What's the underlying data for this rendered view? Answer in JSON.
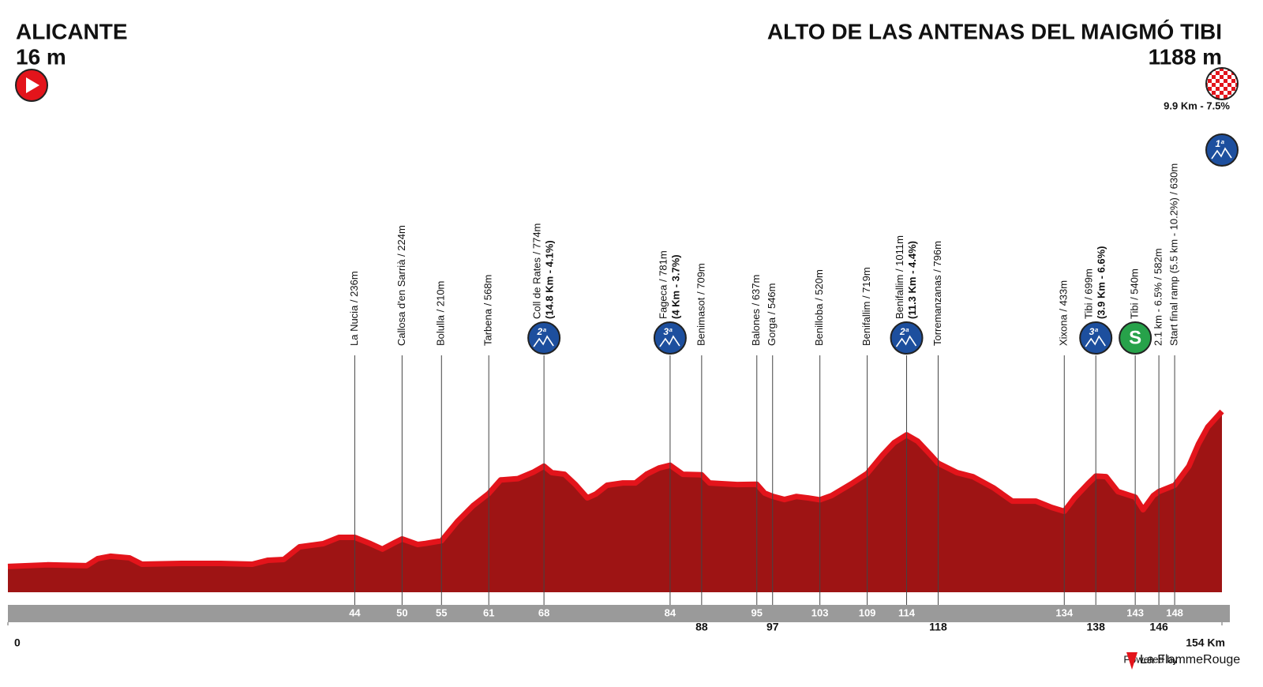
{
  "chart_data": {
    "type": "profile",
    "start": {
      "name": "ALICANTE",
      "elevation": "16 m"
    },
    "finish": {
      "name": "ALTO DE LAS ANTENAS DEL MAIGMÓ TIBI",
      "elevation": "1188 m",
      "detail": "9.9 Km - 7.5%",
      "climb": "1ª"
    },
    "xlim": [
      0,
      154
    ],
    "xticks": [
      0,
      {
        "value": 154,
        "label": "154 Km"
      }
    ],
    "ylim": [
      0,
      1200
    ],
    "fill": "#9e1414",
    "edge": "#e3141b",
    "climb_color": "#1d4f9e",
    "sprint_color": "#27a24a",
    "profile": {
      "km": [
        0,
        5,
        10,
        11.4,
        13,
        15.4,
        17,
        22,
        27,
        31,
        33,
        35,
        37,
        40,
        42,
        44,
        46,
        47.5,
        49,
        50,
        52,
        53,
        55,
        57,
        59,
        61,
        62.5,
        64.7,
        66.7,
        68,
        69,
        70.6,
        72,
        73.5,
        74.6,
        76,
        78,
        79.6,
        81,
        82.6,
        84,
        85.6,
        88,
        89,
        92.5,
        95,
        96,
        97,
        98.5,
        100,
        101.5,
        103,
        104.5,
        107,
        109,
        111,
        112.4,
        114,
        115.4,
        117,
        118,
        120.4,
        122.4,
        125,
        127.4,
        130.4,
        132.4,
        134,
        135.3,
        137,
        138,
        139.3,
        140.8,
        143,
        144,
        145.3,
        146,
        148,
        149.8,
        151,
        152.2,
        154
      ],
      "elevation": [
        16,
        28,
        22,
        75,
        93,
        81,
        33,
        39,
        39,
        33,
        63,
        69,
        164,
        188,
        236,
        236,
        188,
        147,
        194,
        224,
        182,
        190,
        210,
        355,
        475,
        568,
        670,
        680,
        730,
        774,
        725,
        713,
        635,
        534,
        564,
        630,
        647,
        647,
        713,
        760,
        781,
        713,
        709,
        647,
        635,
        637,
        570,
        546,
        522,
        545,
        534,
        520,
        552,
        641,
        719,
        862,
        951,
        1011,
        963,
        862,
        796,
        725,
        695,
        611,
        510,
        510,
        462,
        433,
        534,
        641,
        699,
        695,
        582,
        540,
        445,
        552,
        582,
        630,
        773,
        939,
        1070,
        1188
      ]
    },
    "points": [
      {
        "km": 44,
        "label": "La Nucia / 236m"
      },
      {
        "km": 50,
        "label": "Callosa d'en Sarrià / 224m"
      },
      {
        "km": 55,
        "label": "Bolulla / 210m"
      },
      {
        "km": 61,
        "label": "Tarbena / 568m"
      },
      {
        "km": 68,
        "label": "Coll de Rates / 774m",
        "detail": "(14.8 Km - 4.1%)",
        "climb": "2ª"
      },
      {
        "km": 84,
        "label": "Fageca / 781m",
        "detail": "(4 Km - 3.7%)",
        "climb": "3ª"
      },
      {
        "km": 88,
        "label": "Benimasot / 709m"
      },
      {
        "km": 95,
        "label": "Balones / 637m"
      },
      {
        "km": 97,
        "label": "Gorga / 546m"
      },
      {
        "km": 103,
        "label": "Benilloba / 520m"
      },
      {
        "km": 109,
        "label": "Benifallim / 719m"
      },
      {
        "km": 114,
        "label": "Benifallim / 1011m",
        "detail": "(11.3 Km - 4.4%)",
        "climb": "2ª"
      },
      {
        "km": 118,
        "label": "Torremanzanas / 796m"
      },
      {
        "km": 134,
        "label": "Xixona / 433m"
      },
      {
        "km": 138,
        "label": "Tibi / 699m",
        "detail": "(3.9 Km - 6.6%)",
        "climb": "3ª"
      },
      {
        "km": 143,
        "label": "Tibi / 540m",
        "sprint": "S"
      },
      {
        "km": 146,
        "label": "2.1 km - 6.5% / 582m"
      },
      {
        "km": 148,
        "label": "Start final ramp (5.5 km - 10.2%) / 630m"
      }
    ],
    "footer": {
      "powered": "Powered by",
      "brand": "La FlammeRouge"
    }
  }
}
